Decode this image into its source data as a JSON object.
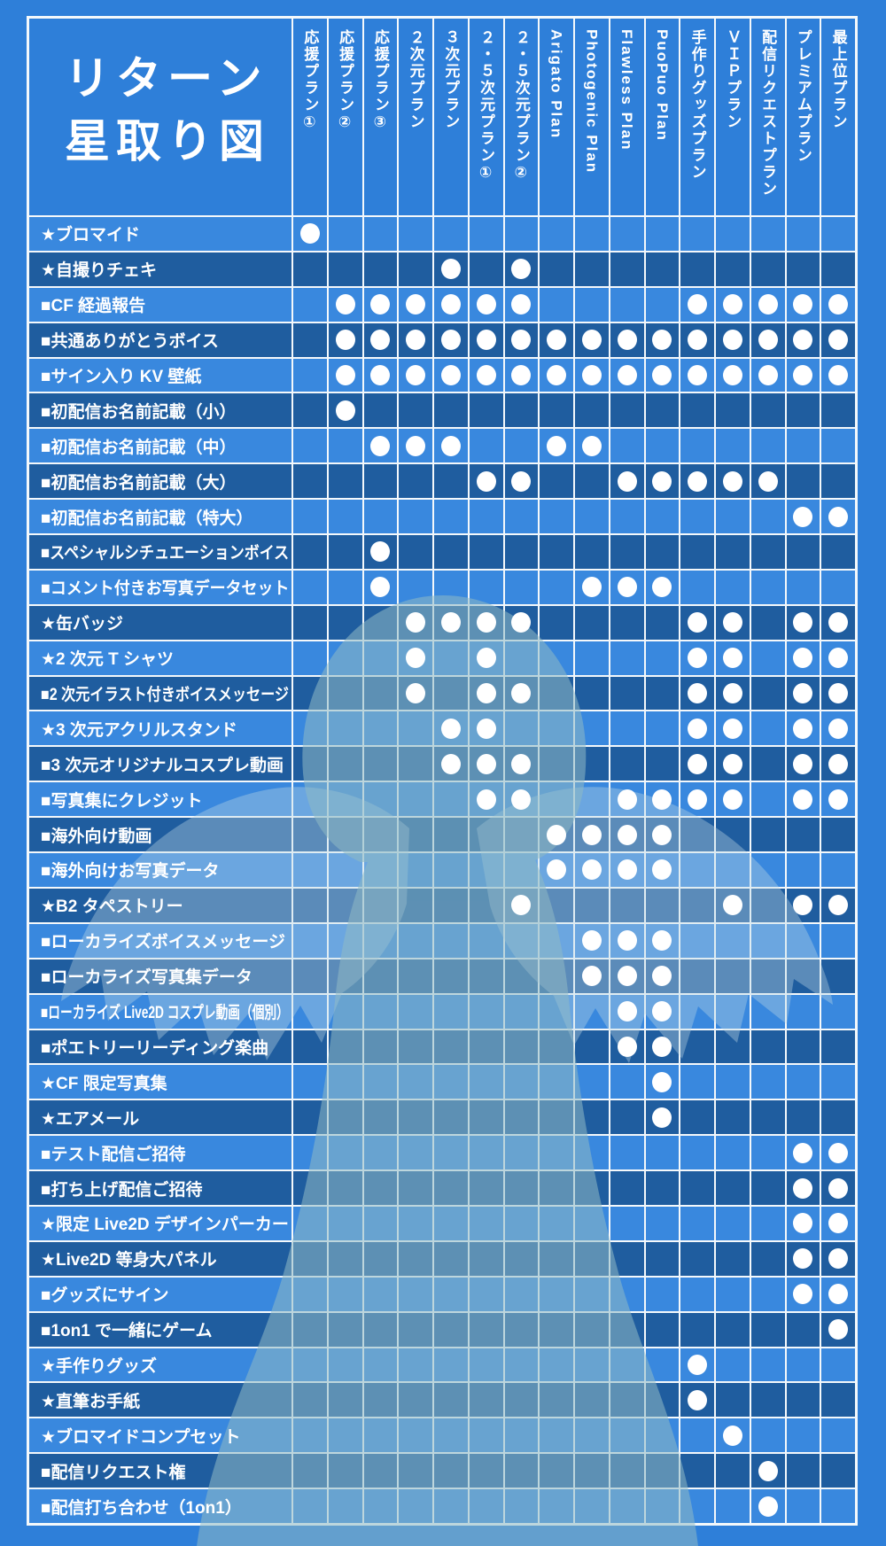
{
  "chart_data": {
    "type": "table",
    "title": "リターン星取り図",
    "title_lines": [
      "リターン",
      "星取り図"
    ],
    "mark_symbol": "●",
    "columns": [
      "応援プラン①",
      "応援プラン②",
      "応援プラン③",
      "２次元プラン",
      "３次元プラン",
      "２・５次元プラン①",
      "２・５次元プラン②",
      "Arigato Plan",
      "Photogenic Plan",
      "Flawless Plan",
      "PuoPuo Plan",
      "手作りグッズプラン",
      "ＶＩＰプラン",
      "配信リクエストプラン",
      "プレミアムプラン",
      "最上位プラン"
    ],
    "rows": [
      {
        "label": "★ブロマイド",
        "included_plans": [
          1
        ]
      },
      {
        "label": "★自撮りチェキ",
        "included_plans": [
          5,
          7
        ]
      },
      {
        "label": "■CF 経過報告",
        "included_plans": [
          2,
          3,
          4,
          5,
          6,
          7,
          12,
          13,
          14,
          15,
          16
        ]
      },
      {
        "label": "■共通ありがとうボイス",
        "included_plans": [
          2,
          3,
          4,
          5,
          6,
          7,
          8,
          9,
          10,
          11,
          12,
          13,
          14,
          15,
          16
        ]
      },
      {
        "label": "■サイン入り KV 壁紙",
        "included_plans": [
          2,
          3,
          4,
          5,
          6,
          7,
          8,
          9,
          10,
          11,
          12,
          13,
          14,
          15,
          16
        ]
      },
      {
        "label": "■初配信お名前記載（小）",
        "included_plans": [
          2
        ]
      },
      {
        "label": "■初配信お名前記載（中）",
        "included_plans": [
          3,
          4,
          5,
          8,
          9
        ]
      },
      {
        "label": "■初配信お名前記載（大）",
        "included_plans": [
          6,
          7,
          10,
          11,
          12,
          13,
          14
        ]
      },
      {
        "label": "■初配信お名前記載（特大）",
        "included_plans": [
          15,
          16
        ]
      },
      {
        "label": "■スペシャルシチュエーションボイス",
        "included_plans": [
          3
        ]
      },
      {
        "label": "■コメント付きお写真データセット",
        "included_plans": [
          3,
          9,
          10,
          11
        ]
      },
      {
        "label": "★缶バッジ",
        "included_plans": [
          4,
          5,
          6,
          7,
          12,
          13,
          15,
          16
        ]
      },
      {
        "label": "★2 次元 T シャツ",
        "included_plans": [
          4,
          6,
          12,
          13,
          15,
          16
        ]
      },
      {
        "label": "■2 次元イラスト付きボイスメッセージ",
        "included_plans": [
          4,
          6,
          7,
          12,
          13,
          15,
          16
        ]
      },
      {
        "label": "★3 次元アクリルスタンド",
        "included_plans": [
          5,
          6,
          12,
          13,
          15,
          16
        ]
      },
      {
        "label": "■3 次元オリジナルコスプレ動画",
        "included_plans": [
          5,
          6,
          7,
          12,
          13,
          15,
          16
        ]
      },
      {
        "label": "■写真集にクレジット",
        "included_plans": [
          6,
          7,
          10,
          11,
          12,
          13,
          15,
          16
        ]
      },
      {
        "label": "■海外向け動画",
        "included_plans": [
          8,
          9,
          10,
          11
        ]
      },
      {
        "label": "■海外向けお写真データ",
        "included_plans": [
          8,
          9,
          10,
          11
        ]
      },
      {
        "label": "★B2 タペストリー",
        "included_plans": [
          7,
          13,
          15,
          16
        ]
      },
      {
        "label": "■ローカライズボイスメッセージ",
        "included_plans": [
          9,
          10,
          11
        ]
      },
      {
        "label": "■ローカライズ写真集データ",
        "included_plans": [
          9,
          10,
          11
        ]
      },
      {
        "label": "■ローカライズ Live2D コスプレ動画（個別）",
        "included_plans": [
          10,
          11
        ]
      },
      {
        "label": "■ポエトリーリーディング楽曲",
        "included_plans": [
          10,
          11
        ]
      },
      {
        "label": "★CF 限定写真集",
        "included_plans": [
          11
        ]
      },
      {
        "label": "★エアメール",
        "included_plans": [
          11
        ]
      },
      {
        "label": "■テスト配信ご招待",
        "included_plans": [
          15,
          16
        ]
      },
      {
        "label": "■打ち上げ配信ご招待",
        "included_plans": [
          15,
          16
        ]
      },
      {
        "label": "★限定 Live2D デザインパーカー",
        "included_plans": [
          15,
          16
        ]
      },
      {
        "label": "★Live2D 等身大パネル",
        "included_plans": [
          15,
          16
        ]
      },
      {
        "label": "■グッズにサイン",
        "included_plans": [
          15,
          16
        ]
      },
      {
        "label": "■1on1 で一緒にゲーム",
        "included_plans": [
          16
        ]
      },
      {
        "label": "★手作りグッズ",
        "included_plans": [
          12
        ]
      },
      {
        "label": "★直筆お手紙",
        "included_plans": [
          12
        ]
      },
      {
        "label": "★ブロマイドコンプセット",
        "included_plans": [
          13
        ]
      },
      {
        "label": "■配信リクエスト権",
        "included_plans": [
          14
        ]
      },
      {
        "label": "■配信打ち合わせ（1on1）",
        "included_plans": [
          14
        ]
      }
    ]
  },
  "colors": {
    "page_background": "#2e7fd9",
    "row_light": "#3988de",
    "row_dark": "#1f5d9f",
    "grid_line": "#f4f8fb",
    "dot": "#ffffff",
    "silhouette_body": "#8fbac4",
    "silhouette_wings": "#bcd7e6",
    "text": "#ffffff"
  }
}
